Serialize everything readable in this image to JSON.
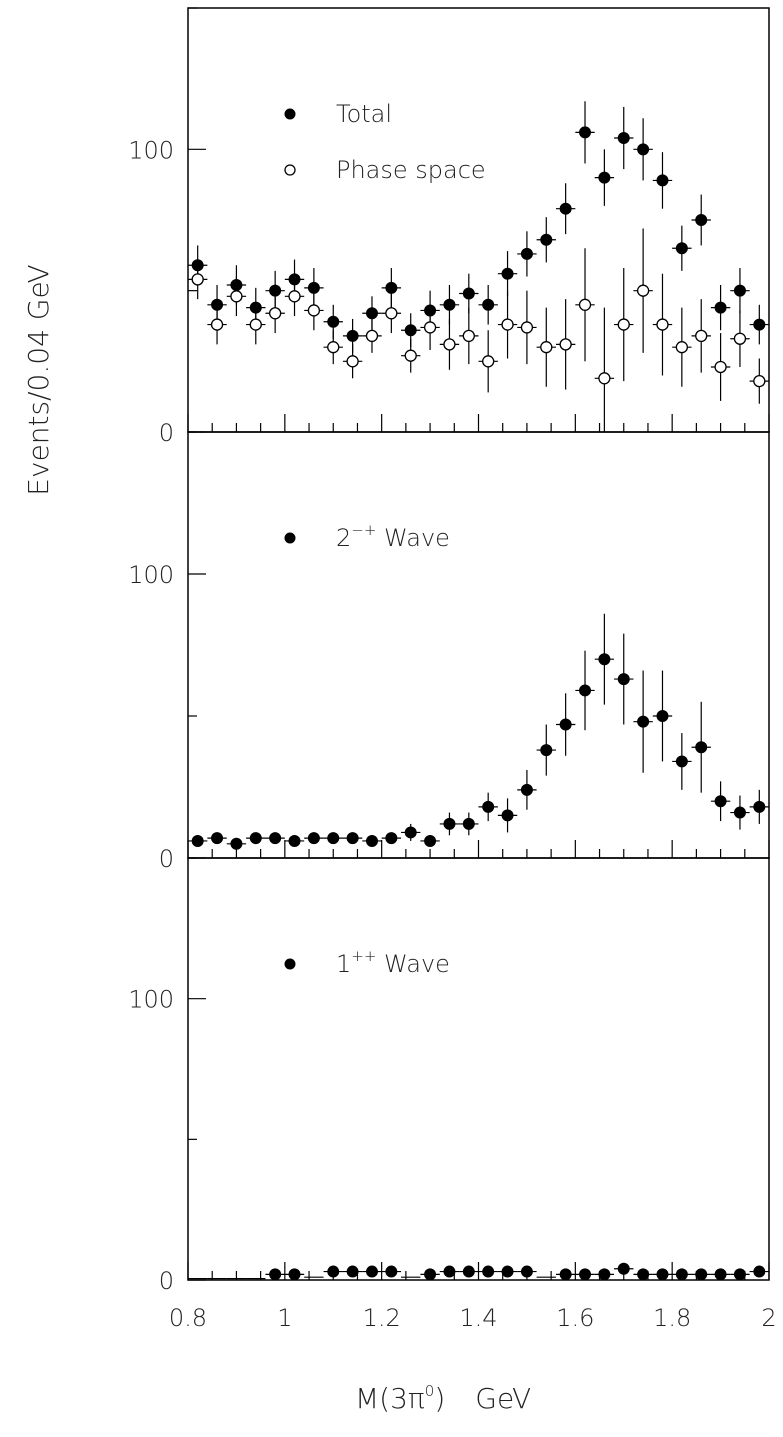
{
  "chart_data": {
    "type": "scatter",
    "ylabel": "Events/0.04 GeV",
    "xlabel_main": "M(3π",
    "xlabel_sup": "0",
    "xlabel_close": ")",
    "xlabel_unit": "GeV",
    "xlim": [
      0.8,
      2.0
    ],
    "x_tick_labels": [
      "0.8",
      "1",
      "1.2",
      "1.4",
      "1.6",
      "1.8",
      "2"
    ],
    "x_tick_values": [
      0.8,
      1.0,
      1.2,
      1.4,
      1.6,
      1.8,
      2.0
    ],
    "bin_width": 0.04,
    "panels": [
      {
        "ylim": [
          0,
          150
        ],
        "y_tick_labels": [
          "0",
          "100"
        ],
        "y_tick_values": [
          0,
          100
        ],
        "legend": [
          {
            "label": "Total",
            "sup": "",
            "suffix": "",
            "marker": "filled"
          },
          {
            "label": "Phase space",
            "sup": "",
            "suffix": "",
            "marker": "open"
          }
        ],
        "series": [
          {
            "marker": "filled",
            "x": [
              0.82,
              0.86,
              0.9,
              0.94,
              0.98,
              1.02,
              1.06,
              1.1,
              1.14,
              1.18,
              1.22,
              1.26,
              1.3,
              1.34,
              1.38,
              1.42,
              1.46,
              1.5,
              1.54,
              1.58,
              1.62,
              1.66,
              1.7,
              1.74,
              1.78,
              1.82,
              1.86,
              1.9,
              1.94,
              1.98
            ],
            "y": [
              59,
              45,
              52,
              44,
              50,
              54,
              51,
              39,
              34,
              42,
              51,
              36,
              43,
              45,
              49,
              45,
              56,
              63,
              68,
              79,
              106,
              90,
              104,
              100,
              89,
              65,
              75,
              44,
              50,
              38
            ],
            "err": [
              7,
              7,
              7,
              7,
              7,
              7,
              7,
              6,
              6,
              6,
              7,
              6,
              7,
              7,
              7,
              7,
              8,
              8,
              8,
              9,
              11,
              10,
              11,
              11,
              10,
              8,
              9,
              8,
              8,
              7
            ]
          },
          {
            "marker": "open",
            "x": [
              0.82,
              0.86,
              0.9,
              0.94,
              0.98,
              1.02,
              1.06,
              1.1,
              1.14,
              1.18,
              1.22,
              1.26,
              1.3,
              1.34,
              1.38,
              1.42,
              1.46,
              1.5,
              1.54,
              1.58,
              1.62,
              1.66,
              1.7,
              1.74,
              1.78,
              1.82,
              1.86,
              1.9,
              1.94,
              1.98
            ],
            "y": [
              54,
              38,
              48,
              38,
              42,
              48,
              43,
              30,
              25,
              34,
              42,
              27,
              37,
              31,
              34,
              25,
              38,
              37,
              30,
              31,
              45,
              19,
              38,
              50,
              38,
              30,
              34,
              23,
              33,
              18
            ],
            "err": [
              7,
              7,
              7,
              7,
              7,
              7,
              7,
              6,
              6,
              6,
              7,
              6,
              8,
              9,
              10,
              11,
              12,
              13,
              14,
              16,
              20,
              25,
              20,
              22,
              18,
              14,
              13,
              12,
              10,
              8
            ]
          }
        ]
      },
      {
        "ylim": [
          0,
          150
        ],
        "y_tick_labels": [
          "0",
          "100"
        ],
        "y_tick_values": [
          0,
          100
        ],
        "legend": [
          {
            "label": "2",
            "sup": "−+",
            "suffix": " Wave",
            "marker": "filled"
          }
        ],
        "series": [
          {
            "marker": "filled",
            "x": [
              0.82,
              0.86,
              0.9,
              0.94,
              0.98,
              1.02,
              1.06,
              1.1,
              1.14,
              1.18,
              1.22,
              1.26,
              1.3,
              1.34,
              1.38,
              1.42,
              1.46,
              1.5,
              1.54,
              1.58,
              1.62,
              1.66,
              1.7,
              1.74,
              1.78,
              1.82,
              1.86,
              1.9,
              1.94,
              1.98
            ],
            "y": [
              6,
              7,
              5,
              7,
              7,
              6,
              7,
              7,
              7,
              6,
              7,
              9,
              6,
              12,
              12,
              18,
              15,
              24,
              38,
              47,
              59,
              70,
              63,
              48,
              50,
              34,
              39,
              20,
              16,
              18
            ],
            "err": [
              2,
              2,
              2,
              2,
              2,
              2,
              2,
              2,
              2,
              2,
              2,
              3,
              2,
              4,
              4,
              5,
              6,
              7,
              9,
              11,
              14,
              16,
              16,
              18,
              16,
              10,
              16,
              7,
              6,
              6
            ]
          }
        ]
      },
      {
        "ylim": [
          0,
          150
        ],
        "y_tick_labels": [
          "0",
          "100"
        ],
        "y_tick_values": [
          0,
          100
        ],
        "legend": [
          {
            "label": "1",
            "sup": "++",
            "suffix": " Wave",
            "marker": "filled"
          }
        ],
        "series": [
          {
            "marker": "filled",
            "x": [
              0.98,
              1.02,
              1.1,
              1.14,
              1.18,
              1.22,
              1.3,
              1.34,
              1.38,
              1.42,
              1.46,
              1.5,
              1.58,
              1.62,
              1.66,
              1.7,
              1.74,
              1.78,
              1.82,
              1.86,
              1.9,
              1.94,
              1.98
            ],
            "y": [
              2,
              2,
              3,
              3,
              3,
              3,
              2,
              3,
              3,
              3,
              3,
              3,
              2,
              2,
              2,
              4,
              2,
              2,
              2,
              2,
              2,
              2,
              3
            ],
            "err": [
              1,
              1,
              1,
              1,
              1,
              1,
              1,
              1,
              1,
              1,
              1,
              1,
              1,
              1,
              1,
              2,
              1,
              1,
              1,
              1,
              1,
              1,
              1
            ]
          },
          {
            "marker": "none",
            "x": [
              0.82,
              0.86,
              0.9,
              0.94,
              1.06,
              1.26,
              1.54
            ],
            "y": [
              0.5,
              0.5,
              0.5,
              0.5,
              1,
              1,
              1
            ],
            "err": [
              0,
              0,
              0,
              0,
              0,
              0,
              0
            ]
          }
        ]
      }
    ]
  }
}
